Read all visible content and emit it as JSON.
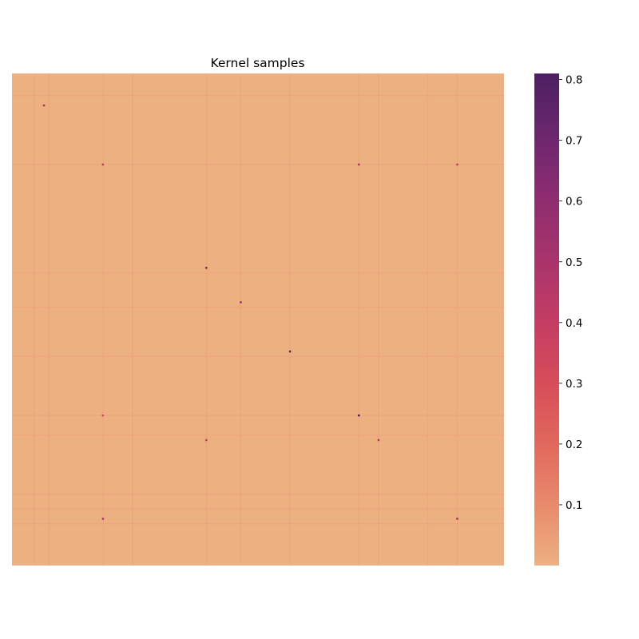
{
  "chart_data": {
    "type": "heatmap",
    "title": "Kernel samples",
    "xlabel": "",
    "ylabel": "",
    "x_ticks_shown": false,
    "y_ticks_shown": false,
    "colormap": "flare",
    "color_range": [
      0.0,
      0.81
    ],
    "colorbar": {
      "ticks": [
        0.1,
        0.2,
        0.3,
        0.4,
        0.5,
        0.6,
        0.7,
        0.8
      ],
      "tick_labels": [
        "0.1",
        "0.2",
        "0.3",
        "0.4",
        "0.5",
        "0.6",
        "0.7",
        "0.8"
      ],
      "colors": [
        {
          "v": 0.0,
          "c": "#edb081"
        },
        {
          "v": 0.1,
          "c": "#e88a6c"
        },
        {
          "v": 0.2,
          "c": "#e1685c"
        },
        {
          "v": 0.3,
          "c": "#d64d5a"
        },
        {
          "v": 0.4,
          "c": "#c43d63"
        },
        {
          "v": 0.5,
          "c": "#a8346b"
        },
        {
          "v": 0.6,
          "c": "#8f2d70"
        },
        {
          "v": 0.7,
          "c": "#6f276f"
        },
        {
          "v": 0.81,
          "c": "#4b2062"
        }
      ]
    },
    "background_value": 0.0,
    "background_color": "#edb081",
    "n_rows": 100,
    "n_cols": 100,
    "highlight_rows": [
      4,
      18,
      40,
      47,
      57,
      69,
      73,
      85,
      88,
      91
    ],
    "highlight_cols": [
      4,
      7,
      18,
      24,
      39,
      46,
      56,
      70,
      74,
      84,
      90
    ],
    "hot_cells": [
      {
        "row": 6,
        "col": 6,
        "value": 0.55
      },
      {
        "row": 18,
        "col": 18,
        "value": 0.45
      },
      {
        "row": 18,
        "col": 70,
        "value": 0.5
      },
      {
        "row": 18,
        "col": 90,
        "value": 0.4
      },
      {
        "row": 39,
        "col": 39,
        "value": 0.7
      },
      {
        "row": 46,
        "col": 46,
        "value": 0.6
      },
      {
        "row": 56,
        "col": 56,
        "value": 0.75
      },
      {
        "row": 69,
        "col": 18,
        "value": 0.35
      },
      {
        "row": 69,
        "col": 70,
        "value": 0.81
      },
      {
        "row": 74,
        "col": 39,
        "value": 0.4
      },
      {
        "row": 74,
        "col": 74,
        "value": 0.45
      },
      {
        "row": 90,
        "col": 18,
        "value": 0.5
      },
      {
        "row": 90,
        "col": 90,
        "value": 0.55
      }
    ]
  }
}
